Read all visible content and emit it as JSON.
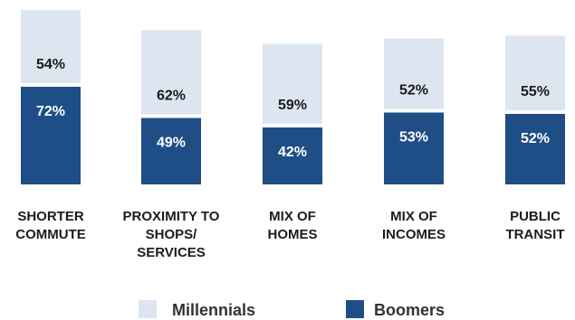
{
  "chart_data": {
    "type": "bar",
    "stacked": true,
    "categories": [
      "SHORTER\nCOMMUTE",
      "PROXIMITY TO\nSHOPS/\nSERVICES",
      "MIX OF\nHOMES",
      "MIX OF\nINCOMES",
      "PUBLIC\nTRANSIT"
    ],
    "series": [
      {
        "name": "Boomers",
        "values": [
          72,
          49,
          42,
          53,
          52
        ],
        "labels": [
          "72%",
          "49%",
          "42%",
          "53%",
          "52%"
        ],
        "color": "#1f4e87"
      },
      {
        "name": "Millennials",
        "values": [
          54,
          62,
          59,
          52,
          55
        ],
        "labels": [
          "54%",
          "62%",
          "59%",
          "52%",
          "55%"
        ],
        "color": "#dde5f1"
      }
    ],
    "legend": {
      "position": "bottom",
      "order": [
        "Millennials",
        "Boomers"
      ]
    },
    "grid": false
  }
}
